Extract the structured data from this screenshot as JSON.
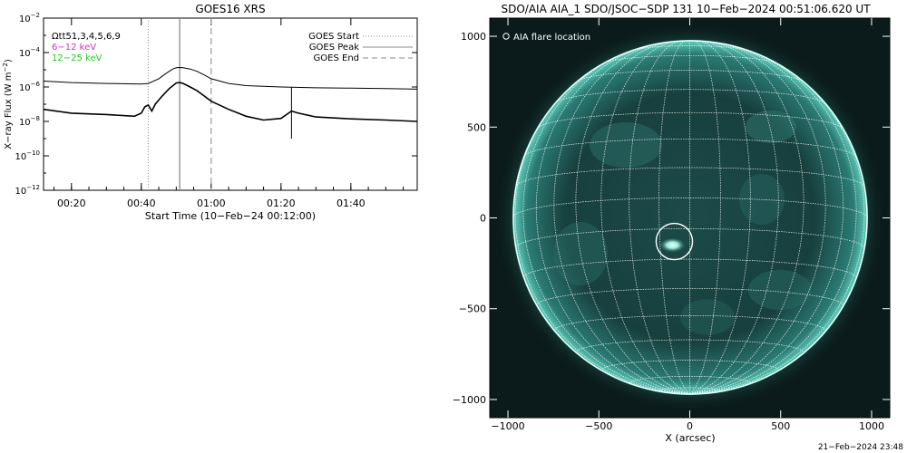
{
  "goes_panel": {
    "title": "GOES16 XRS",
    "overlay_label": "Ωtt51,3,4,5,6,9",
    "band_labels": [
      {
        "text": "6−12 keV",
        "color": "#cc33cc"
      },
      {
        "text": "12−25 keV",
        "color": "#22cc22"
      }
    ],
    "legend": [
      {
        "label": "GOES Start",
        "style": "dotted"
      },
      {
        "label": "GOES Peak",
        "style": "solid"
      },
      {
        "label": "GOES End",
        "style": "dashed"
      }
    ],
    "ylabel": "X−ray Flux (W m",
    "ylabel_sup": "−2",
    "ylabel_close": ")",
    "xlabel": "Start Time (10−Feb−24 00:12:00)"
  },
  "aia_panel": {
    "title": "SDO/AIA AIA_1 SDO/JSOC−SDP 131 10−Feb−2024 00:51:06.620 UT",
    "legend_label": "AIA flare location",
    "xlabel": "X (arcsec)"
  },
  "footer": {
    "timestamp": "21−Feb−2024 23:48"
  },
  "colors": {
    "goes_trace": "#000000",
    "aia_disk": "#0f3a3a",
    "aia_grid": "#ffffff",
    "aia_bright": "#bff5ea"
  },
  "chart_data": [
    {
      "type": "line",
      "title": "GOES16 XRS",
      "x_unit": "minutes after 00:00 UT on 10-Feb-2024",
      "xlim": [
        12,
        119
      ],
      "ylim": [
        1e-12,
        0.01
      ],
      "yscale": "log",
      "x_ticks": [
        20,
        40,
        60,
        80,
        100
      ],
      "x_tick_labels": [
        "00:20",
        "00:40",
        "01:00",
        "01:20",
        "01:40"
      ],
      "y_ticks": [
        1e-12,
        1e-10,
        1e-08,
        1e-06,
        0.0001,
        0.01
      ],
      "y_tick_labels": [
        {
          "base": "10",
          "exp": "−12"
        },
        {
          "base": "10",
          "exp": "−10"
        },
        {
          "base": "10",
          "exp": "−8"
        },
        {
          "base": "10",
          "exp": "−6"
        },
        {
          "base": "10",
          "exp": "−4"
        },
        {
          "base": "10",
          "exp": "−2"
        }
      ],
      "series": [
        {
          "x": [
            12,
            20,
            30,
            40,
            42,
            45,
            47,
            49,
            50,
            51,
            52,
            54,
            56,
            58,
            60,
            65,
            70,
            80,
            90,
            100,
            110,
            119
          ],
          "y": [
            2.2e-06,
            1.8e-06,
            1.6e-06,
            1.5e-06,
            1.6e-06,
            3e-06,
            6e-06,
            1.1e-05,
            1.3e-05,
            1.35e-05,
            1.3e-05,
            1.1e-05,
            8e-06,
            5e-06,
            3e-06,
            1.6e-06,
            1.2e-06,
            1e-06,
            9e-07,
            8.5e-07,
            8e-07,
            7.5e-07
          ]
        },
        {
          "x": [
            12,
            20,
            30,
            38,
            40,
            41,
            42,
            43,
            44,
            46,
            48,
            50,
            51,
            52,
            54,
            56,
            58,
            60,
            65,
            70,
            75,
            80,
            83,
            85,
            90,
            100,
            110,
            119
          ],
          "y": [
            5e-08,
            3e-08,
            2.5e-08,
            2e-08,
            3e-08,
            7e-08,
            9e-08,
            4e-08,
            1e-07,
            3e-07,
            8e-07,
            1.7e-06,
            1.8e-06,
            1.6e-06,
            1e-06,
            6e-07,
            3e-07,
            1.5e-07,
            5e-08,
            2e-08,
            1.2e-08,
            1.5e-08,
            4e-08,
            3e-08,
            1.8e-08,
            1.4e-08,
            1.2e-08,
            1e-08
          ]
        }
      ],
      "vertical_markers": [
        {
          "label": "GOES Start",
          "x": 42,
          "style": "dotted"
        },
        {
          "label": "GOES Peak",
          "x": 51,
          "style": "solid"
        },
        {
          "label": "GOES End",
          "x": 60,
          "style": "dashed"
        }
      ],
      "annotation_bar": {
        "x": 83,
        "y_from": 1e-06,
        "y_to": 1e-09
      }
    },
    {
      "type": "image",
      "title": "SDO/AIA AIA_1 SDO/JSOC−SDP 131 10−Feb−2024 00:51:06.620 UT",
      "xlabel": "X (arcsec)",
      "xlim": [
        -1100,
        1100
      ],
      "ylim": [
        -1100,
        1100
      ],
      "x_ticks": [
        -1000,
        -500,
        0,
        500,
        1000
      ],
      "x_tick_labels": [
        "−1000",
        "−500",
        "0",
        "500",
        "1000"
      ],
      "y_ticks": [
        -1000,
        -500,
        0,
        500,
        1000
      ],
      "y_tick_labels": [
        "−1000",
        "−500",
        "0",
        "500",
        "1000"
      ],
      "solar_radius_arcsec": 975,
      "flare_location": {
        "x": -85,
        "y": -130,
        "radius": 100
      },
      "legend": "AIA flare location"
    }
  ]
}
